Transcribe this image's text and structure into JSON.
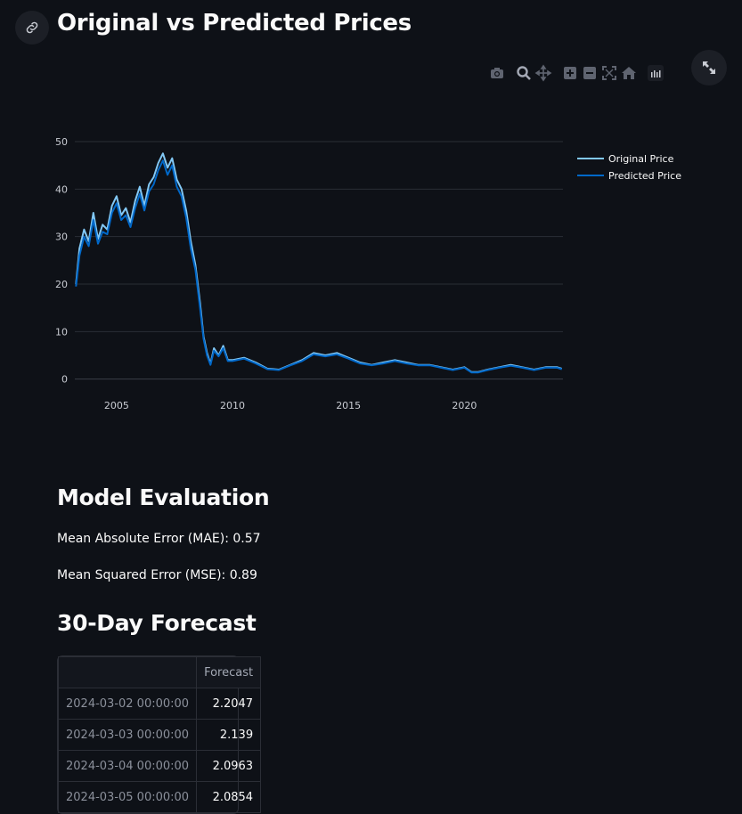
{
  "page": {
    "title": "Original vs Predicted Prices",
    "link_icon": "link-icon",
    "fullscreen_icon": "expand-icon"
  },
  "modebar": {
    "icons": [
      "camera-icon",
      "zoom-icon",
      "pan-icon",
      "zoom-in-icon",
      "zoom-out-icon",
      "autoscale-icon",
      "home-icon",
      "plotly-logo-icon"
    ]
  },
  "chart_data": {
    "type": "line",
    "title": "",
    "xlabel": "",
    "ylabel": "",
    "xlim": [
      2003.2,
      2024.25
    ],
    "ylim": [
      -1,
      50
    ],
    "xticks": [
      2005,
      2010,
      2015,
      2020
    ],
    "yticks": [
      0,
      10,
      20,
      30,
      40,
      50
    ],
    "grid": "horizontal",
    "legend": "top-right",
    "series": [
      {
        "name": "Original Price",
        "color": "#82c8f5",
        "x": [
          2003.25,
          2003.4,
          2003.6,
          2003.8,
          2004.0,
          2004.2,
          2004.4,
          2004.6,
          2004.8,
          2005.0,
          2005.2,
          2005.4,
          2005.6,
          2005.8,
          2006.0,
          2006.2,
          2006.4,
          2006.6,
          2006.8,
          2007.0,
          2007.2,
          2007.4,
          2007.6,
          2007.8,
          2008.0,
          2008.2,
          2008.4,
          2008.6,
          2008.75,
          2008.9,
          2009.05,
          2009.2,
          2009.4,
          2009.6,
          2009.8,
          2010.0,
          2010.5,
          2011.0,
          2011.5,
          2012.0,
          2012.5,
          2013.0,
          2013.5,
          2014.0,
          2014.5,
          2015.0,
          2015.5,
          2016.0,
          2016.5,
          2017.0,
          2017.5,
          2018.0,
          2018.5,
          2019.0,
          2019.5,
          2020.0,
          2020.3,
          2020.6,
          2021.0,
          2021.5,
          2022.0,
          2022.5,
          2023.0,
          2023.5,
          2024.0,
          2024.2
        ],
        "values": [
          20.0,
          27.5,
          31.5,
          29.0,
          35.0,
          29.5,
          32.5,
          31.5,
          36.5,
          38.5,
          34.5,
          36.0,
          33.0,
          37.5,
          40.5,
          36.5,
          41.0,
          42.5,
          45.5,
          47.5,
          44.5,
          46.5,
          42.0,
          40.0,
          35.5,
          29.0,
          24.0,
          16.0,
          9.0,
          5.5,
          3.2,
          6.5,
          5.0,
          7.0,
          4.0,
          4.0,
          4.5,
          3.5,
          2.2,
          2.0,
          3.0,
          4.0,
          5.5,
          5.0,
          5.5,
          4.5,
          3.5,
          3.0,
          3.5,
          4.0,
          3.5,
          3.0,
          3.0,
          2.5,
          2.0,
          2.5,
          1.5,
          1.5,
          2.0,
          2.5,
          3.0,
          2.5,
          2.0,
          2.5,
          2.5,
          2.2
        ]
      },
      {
        "name": "Predicted Price",
        "color": "#0068c9",
        "x": [
          2003.25,
          2003.4,
          2003.6,
          2003.8,
          2004.0,
          2004.2,
          2004.4,
          2004.6,
          2004.8,
          2005.0,
          2005.2,
          2005.4,
          2005.6,
          2005.8,
          2006.0,
          2006.2,
          2006.4,
          2006.6,
          2006.8,
          2007.0,
          2007.2,
          2007.4,
          2007.6,
          2007.8,
          2008.0,
          2008.2,
          2008.4,
          2008.6,
          2008.75,
          2008.9,
          2009.05,
          2009.2,
          2009.4,
          2009.6,
          2009.8,
          2010.0,
          2010.5,
          2011.0,
          2011.5,
          2012.0,
          2012.5,
          2013.0,
          2013.5,
          2014.0,
          2014.5,
          2015.0,
          2015.5,
          2016.0,
          2016.5,
          2017.0,
          2017.5,
          2018.0,
          2018.5,
          2019.0,
          2019.5,
          2020.0,
          2020.3,
          2020.6,
          2021.0,
          2021.5,
          2022.0,
          2022.5,
          2023.0,
          2023.5,
          2024.0,
          2024.2
        ],
        "values": [
          19.5,
          26.0,
          30.0,
          28.0,
          33.5,
          28.5,
          31.0,
          30.5,
          35.0,
          37.0,
          33.5,
          34.5,
          32.0,
          36.0,
          39.0,
          35.5,
          39.5,
          41.0,
          44.0,
          46.0,
          43.0,
          45.0,
          40.5,
          38.5,
          34.0,
          27.5,
          23.0,
          15.0,
          8.5,
          5.0,
          3.0,
          6.0,
          4.8,
          6.5,
          3.8,
          3.8,
          4.3,
          3.3,
          2.1,
          1.9,
          2.9,
          3.8,
          5.2,
          4.8,
          5.2,
          4.3,
          3.3,
          2.9,
          3.3,
          3.8,
          3.3,
          2.9,
          2.9,
          2.4,
          1.9,
          2.4,
          1.4,
          1.4,
          1.9,
          2.4,
          2.8,
          2.4,
          1.9,
          2.4,
          2.4,
          2.1
        ]
      }
    ]
  },
  "evaluation": {
    "heading": "Model Evaluation",
    "mae": "Mean Absolute Error (MAE): 0.57",
    "mse": "Mean Squared Error (MSE): 0.89"
  },
  "forecast": {
    "heading": "30-Day Forecast",
    "column_header": "Forecast",
    "rows": [
      {
        "date": "2024-03-02 00:00:00",
        "value": "2.2047"
      },
      {
        "date": "2024-03-03 00:00:00",
        "value": "2.139"
      },
      {
        "date": "2024-03-04 00:00:00",
        "value": "2.0963"
      },
      {
        "date": "2024-03-05 00:00:00",
        "value": "2.0854"
      }
    ]
  }
}
